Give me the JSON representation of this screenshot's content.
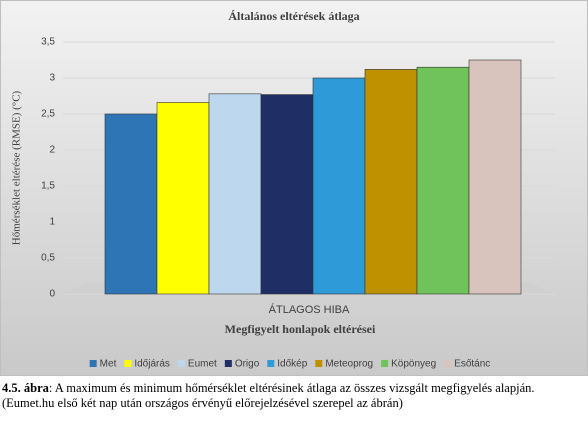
{
  "chart_data": {
    "type": "bar",
    "title": "Általános eltérések átlaga",
    "xlabel": "Megfigyelt honlapok eltérései",
    "ylabel": "Hőmérséklet eltérése (RMSE) (°C)",
    "categories": [
      "ÁTLAGOS HIBA"
    ],
    "series": [
      {
        "name": "Met",
        "color": "#2e75b6",
        "values": [
          2.5
        ]
      },
      {
        "name": "Időjárás",
        "color": "#ffff00",
        "values": [
          2.66
        ]
      },
      {
        "name": "Eumet",
        "color": "#bdd7ee",
        "values": [
          2.78
        ]
      },
      {
        "name": "Origo",
        "color": "#1f2f66",
        "values": [
          2.77
        ]
      },
      {
        "name": "Időkép",
        "color": "#2f9ad8",
        "values": [
          3.0
        ]
      },
      {
        "name": "Meteoprog",
        "color": "#bf9000",
        "values": [
          3.12
        ]
      },
      {
        "name": "Köpönyeg",
        "color": "#70c35a",
        "values": [
          3.15
        ]
      },
      {
        "name": "Esőtánc",
        "color": "#d9c3bd",
        "values": [
          3.25
        ]
      }
    ],
    "ylim": [
      0,
      3.5
    ],
    "yticks": [
      0,
      {
        "value": 0.5,
        "label": "0,5"
      },
      1,
      {
        "value": 1.5,
        "label": "1,5"
      },
      2,
      {
        "value": 2.5,
        "label": "2,5"
      },
      3,
      {
        "value": 3.5,
        "label": "3,5"
      }
    ],
    "grid": true,
    "legend": "bottom"
  },
  "caption": {
    "label": "4.5. ábra",
    "text": ": A maximum és minimum hőmérséklet eltérésinek átlaga az összes vizsgált megfigyelés alapján. (Eumet.hu első két nap után országos érvényű előrejelzésével szerepel az ábrán)"
  }
}
